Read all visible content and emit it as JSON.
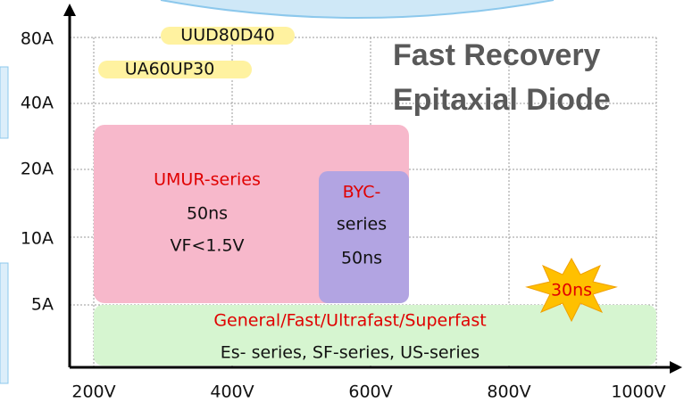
{
  "title": {
    "line1": "Fast Recovery",
    "line2": "Epitaxial Diode"
  },
  "x_axis": {
    "labels": [
      "200V",
      "400V",
      "600V",
      "800V",
      "1000V"
    ]
  },
  "y_axis": {
    "labels": [
      "80A",
      "40A",
      "20A",
      "10A",
      "5A"
    ]
  },
  "parts": [
    "UUD80D40",
    "UA60UP30"
  ],
  "regions": [
    {
      "lines": [
        "UMUR-series",
        "50ns",
        "VF<1.5V"
      ]
    },
    {
      "lines": [
        "BYC-",
        "series",
        "50ns"
      ]
    },
    {
      "lines": [
        "General/Fast/Ultrafast/Superfast",
        "Es- series, SF-series, US-series"
      ]
    }
  ],
  "badge": "30ns"
}
